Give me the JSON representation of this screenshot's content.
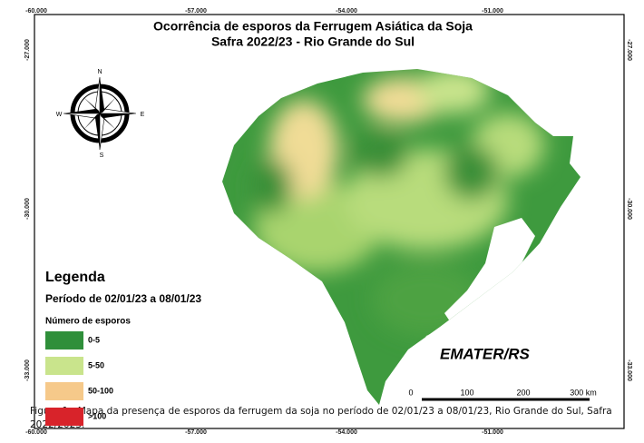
{
  "map": {
    "title": [
      "Ocorrência de esporos da Ferrugem Asiática da Soja",
      "Safra 2022/23 - Rio Grande do Sul"
    ],
    "lon_labels": [
      "-60.000",
      "-57.000",
      "-54.000",
      "-51.000"
    ],
    "lat_labels": [
      "-27.000",
      "-30.000",
      "-33.000"
    ],
    "compass": [
      "N",
      "S",
      "E",
      "W"
    ],
    "legend": {
      "title": "Legenda",
      "period": "Período de 02/01/23  a 08/01/23",
      "subtitle": "Número de esporos",
      "items": [
        {
          "label": "0-5",
          "color": "#2f8f3a"
        },
        {
          "label": "5-50",
          "color": "#c9e48c"
        },
        {
          "label": "50-100",
          "color": "#f6c98a"
        },
        {
          "label": ">100",
          "color": "#d8232a"
        }
      ]
    },
    "scale": [
      "0",
      "100",
      "200",
      "300 km"
    ],
    "logo": "EMATER/RS"
  },
  "caption": "Figura 1 - Mapa da presença de esporos da ferrugem da soja no período de 02/01/23 a 08/01/23, Rio Grande do Sul, Safra 2022/2023."
}
